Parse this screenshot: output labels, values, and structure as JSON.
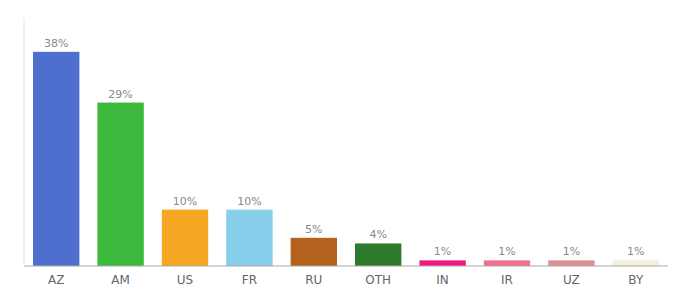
{
  "chart_data": {
    "type": "bar",
    "categories": [
      "AZ",
      "AM",
      "US",
      "FR",
      "RU",
      "OTH",
      "IN",
      "IR",
      "UZ",
      "BY"
    ],
    "values": [
      38,
      29,
      10,
      10,
      5,
      4,
      1,
      1,
      1,
      1
    ],
    "value_labels": [
      "38%",
      "29%",
      "10%",
      "10%",
      "5%",
      "4%",
      "1%",
      "1%",
      "1%",
      "1%"
    ],
    "colors": [
      "#4f6fce",
      "#3dba3d",
      "#f5a623",
      "#87ceeb",
      "#b5621e",
      "#2d7a2d",
      "#f0197d",
      "#f07090",
      "#e09090",
      "#f5f0dc"
    ],
    "ylim": [
      0,
      44
    ],
    "data_labels": true,
    "tick_labels": "x",
    "grid": false
  }
}
